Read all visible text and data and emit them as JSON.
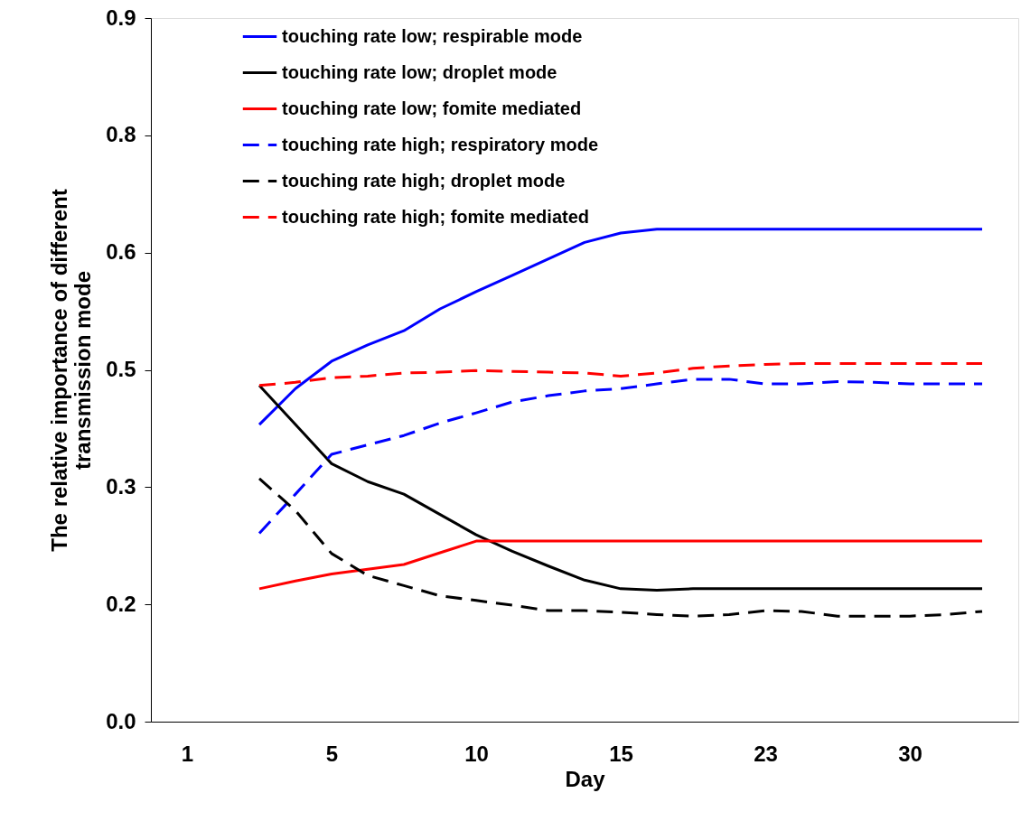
{
  "chart_data": {
    "type": "line",
    "xlabel": "Day",
    "ylabel": "The relative importance of different\ntransmission mode",
    "categories": [
      "1",
      null,
      null,
      null,
      "5",
      null,
      null,
      null,
      "10",
      null,
      null,
      null,
      "15",
      null,
      null,
      null,
      "23",
      null,
      null,
      null,
      "30",
      null,
      null
    ],
    "ylim": [
      0,
      0.9
    ],
    "yticks": [
      {
        "value": 0,
        "label": "0.0"
      },
      {
        "value": 0.15,
        "label": "0.2"
      },
      0.3,
      {
        "value": 0.45,
        "label": "0.5"
      },
      0.6,
      {
        "value": 0.75,
        "label": "0.8"
      },
      0.9
    ],
    "grid": false,
    "legend": "top",
    "marker": "none",
    "series": [
      {
        "name": "touching rate low; respirable mode",
        "color": "#0000ff",
        "line_style": "solid",
        "values": [
          null,
          null,
          0.38,
          0.426,
          0.461,
          0.482,
          0.5,
          0.528,
          0.55,
          0.571,
          0.592,
          0.613,
          0.625,
          0.63,
          0.63,
          0.63,
          0.63,
          0.63,
          0.63,
          0.63,
          0.63,
          0.63,
          0.63
        ]
      },
      {
        "name": "touching rate low; droplet mode",
        "color": "#000000",
        "line_style": "solid",
        "values": [
          null,
          null,
          0.43,
          0.38,
          0.33,
          0.307,
          0.291,
          0.265,
          0.239,
          0.218,
          0.199,
          0.181,
          0.17,
          0.168,
          0.17,
          0.17,
          0.17,
          0.17,
          0.17,
          0.17,
          0.17,
          0.17,
          0.17
        ]
      },
      {
        "name": "touching rate low; fomite mediated",
        "color": "#ff0000",
        "line_style": "solid",
        "values": [
          null,
          null,
          0.17,
          0.18,
          0.189,
          0.195,
          0.201,
          0.216,
          0.231,
          0.231,
          0.231,
          0.231,
          0.231,
          0.231,
          0.231,
          0.231,
          0.231,
          0.231,
          0.231,
          0.231,
          0.231,
          0.231,
          0.231
        ]
      },
      {
        "name": "touching rate high; respiratory mode",
        "color": "#0000ff",
        "line_style": "dashed",
        "values": [
          null,
          null,
          0.241,
          0.291,
          0.342,
          0.354,
          0.366,
          0.382,
          0.395,
          0.409,
          0.417,
          0.423,
          0.426,
          0.432,
          0.438,
          0.438,
          0.432,
          0.432,
          0.435,
          0.434,
          0.432,
          0.432,
          0.432
        ]
      },
      {
        "name": "touching rate high; droplet mode",
        "color": "#000000",
        "line_style": "dashed",
        "values": [
          null,
          null,
          0.311,
          0.27,
          0.215,
          0.187,
          0.174,
          0.161,
          0.155,
          0.149,
          0.142,
          0.142,
          0.14,
          0.137,
          0.135,
          0.137,
          0.142,
          0.141,
          0.135,
          0.135,
          0.135,
          0.137,
          0.141
        ]
      },
      {
        "name": "touching rate high; fomite mediated",
        "color": "#ff0000",
        "line_style": "dashed",
        "values": [
          null,
          null,
          0.43,
          0.434,
          0.44,
          0.442,
          0.446,
          0.447,
          0.449,
          0.448,
          0.447,
          0.446,
          0.442,
          0.446,
          0.452,
          0.455,
          0.457,
          0.458,
          0.458,
          0.458,
          0.458,
          0.458,
          0.458
        ]
      }
    ]
  }
}
